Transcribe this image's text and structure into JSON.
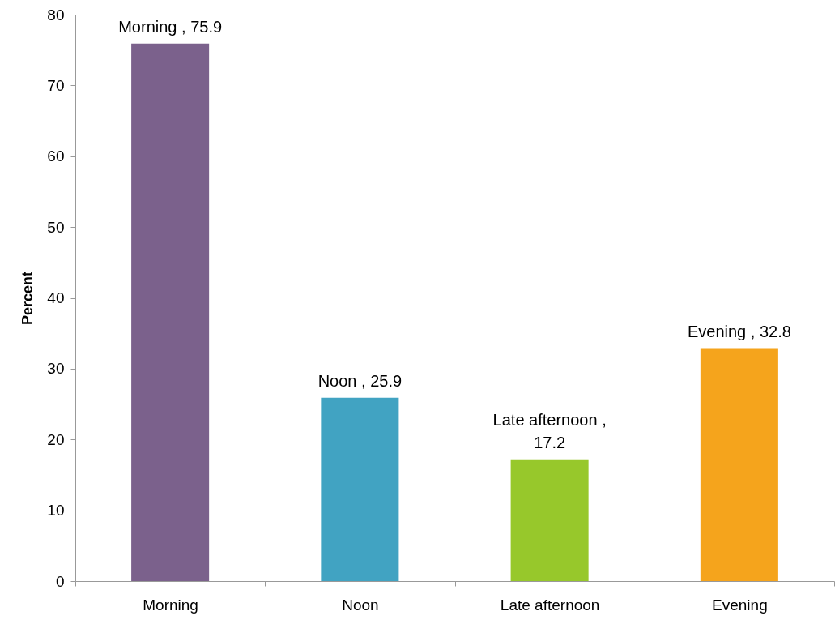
{
  "chart_data": {
    "type": "bar",
    "ylabel": "Percent",
    "categories": [
      "Morning",
      "Noon",
      "Late afternoon",
      "Evening"
    ],
    "values": [
      75.9,
      25.9,
      17.2,
      32.8
    ],
    "colors": [
      "#7b618c",
      "#41a3c2",
      "#97c82b",
      "#f5a41c"
    ],
    "value_labels": [
      "Morning , 75.9",
      "Noon , 25.9",
      "Late afternoon , 17.2",
      "Evening , 32.8"
    ],
    "ylim": [
      0,
      80
    ],
    "yticks": [
      0,
      10,
      20,
      30,
      40,
      50,
      60,
      70,
      80
    ],
    "grid": false
  }
}
